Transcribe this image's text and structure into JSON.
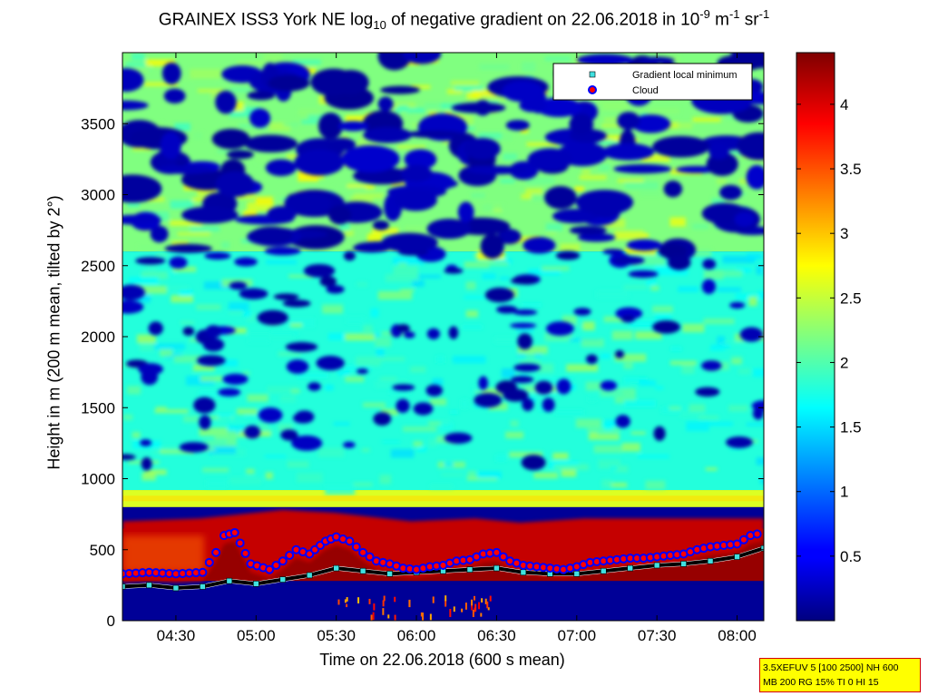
{
  "title": {
    "prefix": "GRAINEX ISS3 York NE log",
    "sub": "10",
    "middle": " of negative gradient on 22.06.2018 in 10",
    "sup1": "-9",
    "unit1": " m",
    "sup2": "-1",
    "unit2": " sr",
    "sup3": "-1"
  },
  "y_label": "Height in m (200 m mean, tilted by 2°)",
  "x_label": "Time on 22.06.2018 (600 s mean)",
  "settings_box": {
    "line1": "3.5XEFUV 5 [100 2500] NH 600",
    "line2": "MB 200 RG 15% TI 0 HI 15"
  },
  "chart_data": {
    "type": "heatmap",
    "x_unit": "time of day (hh:mm, 22.06.2018)",
    "xlim": [
      "04:10",
      "08:10"
    ],
    "ylim": [
      0,
      4000
    ],
    "x_ticks": [
      "04:30",
      "05:00",
      "05:30",
      "06:00",
      "06:30",
      "07:00",
      "07:30",
      "08:00"
    ],
    "y_ticks": [
      0,
      500,
      1000,
      1500,
      2000,
      2500,
      3000,
      3500
    ],
    "colorbar": {
      "range": [
        0,
        4.4
      ],
      "ticks": [
        "0.5",
        "1",
        "1.5",
        "2",
        "2.5",
        "3",
        "3.5",
        "4"
      ],
      "colormap": "jet"
    },
    "legend": {
      "placement": "top-right",
      "entries": [
        {
          "label": "Gradient local minimum",
          "marker": "square",
          "color": "#40e0e0"
        },
        {
          "label": "Cloud",
          "marker": "circle",
          "color": "#ff0000",
          "edge": "#0000ff"
        }
      ]
    },
    "regimes": [
      {
        "height_from": 0,
        "height_to": 250,
        "value": 0.1,
        "note": "below boundary"
      },
      {
        "height_from": 280,
        "height_to": 650,
        "value": 4.3,
        "note": "dark red aerosol layer"
      },
      {
        "height_from": 650,
        "height_to": 800,
        "value": 0.1,
        "note": "dark blue gap"
      },
      {
        "height_from": 800,
        "height_to": 920,
        "value": 2.6,
        "note": "yellow band"
      },
      {
        "height_from": 920,
        "height_to": 2600,
        "value": 1.8,
        "note": "cyan/green with dark blue patches"
      },
      {
        "height_from": 2600,
        "height_to": 4000,
        "value": 2.2,
        "note": "green/yellow with large dark blue patches"
      }
    ],
    "series": [
      {
        "name": "Cloud",
        "x": [
          "04:10",
          "04:20",
          "04:30",
          "04:40",
          "04:45",
          "04:48",
          "04:52",
          "04:58",
          "05:05",
          "05:10",
          "05:15",
          "05:20",
          "05:26",
          "05:30",
          "05:35",
          "05:40",
          "05:45",
          "05:50",
          "05:55",
          "06:00",
          "06:05",
          "06:10",
          "06:15",
          "06:20",
          "06:25",
          "06:30",
          "06:35",
          "06:40",
          "06:45",
          "06:50",
          "06:55",
          "07:00",
          "07:05",
          "07:10",
          "07:15",
          "07:20",
          "07:25",
          "07:30",
          "07:35",
          "07:40",
          "07:45",
          "07:50",
          "07:55",
          "08:00",
          "08:05",
          "08:10"
        ],
        "y": [
          330,
          340,
          330,
          340,
          480,
          600,
          620,
          400,
          360,
          420,
          500,
          470,
          560,
          590,
          560,
          480,
          420,
          400,
          370,
          360,
          380,
          390,
          420,
          430,
          470,
          480,
          420,
          390,
          380,
          370,
          360,
          380,
          410,
          420,
          430,
          440,
          440,
          450,
          460,
          470,
          500,
          520,
          530,
          540,
          600,
          620
        ]
      },
      {
        "name": "Gradient local minimum",
        "x": [
          "04:10",
          "04:20",
          "04:30",
          "04:40",
          "04:50",
          "05:00",
          "05:10",
          "05:20",
          "05:30",
          "05:40",
          "05:50",
          "06:00",
          "06:10",
          "06:20",
          "06:30",
          "06:40",
          "06:50",
          "07:00",
          "07:10",
          "07:20",
          "07:30",
          "07:40",
          "07:50",
          "08:00",
          "08:10"
        ],
        "y": [
          240,
          250,
          230,
          240,
          280,
          260,
          290,
          320,
          370,
          350,
          330,
          340,
          350,
          360,
          370,
          340,
          330,
          330,
          350,
          370,
          390,
          400,
          420,
          450,
          510
        ]
      }
    ]
  }
}
